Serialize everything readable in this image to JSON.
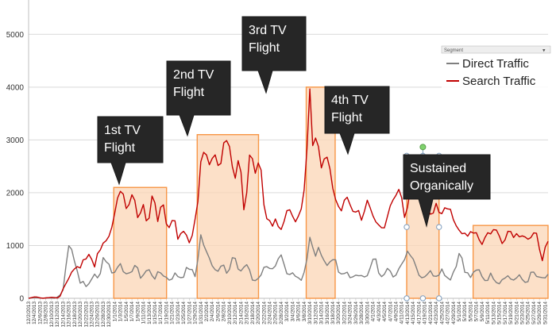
{
  "chart_data": {
    "type": "line",
    "title": "",
    "xlabel": "",
    "ylabel": "",
    "ylim": [
      0,
      5500
    ],
    "yticks": [
      0,
      1000,
      2000,
      3000,
      4000,
      5000
    ],
    "n_points": 182,
    "date_labels": [
      "12/2/2013",
      "12/4/2013",
      "12/6/2013",
      "12/8/2013",
      "12/10/2013",
      "12/12/2013",
      "12/14/2013",
      "12/16/2013",
      "12/18/2013",
      "12/20/2013",
      "12/22/2013",
      "12/24/2013",
      "12/26/2013",
      "12/28/2013",
      "12/30/2013",
      "1/1/2014",
      "1/3/2014",
      "1/5/2014",
      "1/7/2014",
      "1/9/2014",
      "1/11/2014",
      "1/13/2014",
      "1/15/2014",
      "1/17/2014",
      "1/19/2014",
      "1/21/2014",
      "1/23/2014",
      "1/25/2014",
      "1/27/2014",
      "1/29/2014",
      "1/31/2014",
      "2/2/2014",
      "2/4/2014",
      "2/6/2014",
      "2/8/2014",
      "2/10/2014",
      "2/12/2014",
      "2/14/2014",
      "2/16/2014",
      "2/18/2014",
      "2/20/2014",
      "2/22/2014",
      "2/24/2014",
      "2/26/2014",
      "2/28/2014",
      "3/2/2014",
      "3/4/2014",
      "3/6/2014",
      "3/8/2014",
      "3/10/2014",
      "3/12/2014",
      "3/14/2014",
      "3/16/2014",
      "3/18/2014",
      "3/20/2014",
      "3/22/2014",
      "3/24/2014",
      "3/26/2014",
      "3/28/2014",
      "3/30/2014",
      "4/1/2014",
      "4/3/2014",
      "4/5/2014",
      "4/7/2014",
      "4/9/2014",
      "4/11/2014",
      "4/13/2014",
      "4/15/2014",
      "4/17/2014",
      "4/19/2014",
      "4/21/2014",
      "4/23/2014",
      "4/25/2014",
      "4/27/2014",
      "4/29/2014",
      "5/1/2014",
      "5/3/2014",
      "5/5/2014",
      "5/7/2014",
      "5/9/2014",
      "5/11/2014",
      "5/13/2014",
      "5/15/2014",
      "5/17/2014",
      "5/19/2014",
      "5/21/2014",
      "5/23/2014",
      "5/25/2014",
      "5/27/2014",
      "5/29/2014",
      "5/31/2014"
    ],
    "series": [
      {
        "name": "Direct Traffic",
        "color": "#7f7f7f",
        "anchors": [
          [
            0,
            0
          ],
          [
            4,
            20
          ],
          [
            8,
            0
          ],
          [
            12,
            10
          ],
          [
            16,
            0
          ],
          [
            20,
            100
          ],
          [
            24,
            1150
          ],
          [
            27,
            700
          ],
          [
            30,
            350
          ],
          [
            34,
            200
          ],
          [
            38,
            450
          ],
          [
            41,
            350
          ],
          [
            44,
            800
          ],
          [
            46,
            700
          ],
          [
            50,
            450
          ],
          [
            54,
            700
          ],
          [
            58,
            350
          ],
          [
            62,
            650
          ],
          [
            66,
            400
          ],
          [
            70,
            550
          ],
          [
            74,
            400
          ],
          [
            78,
            500
          ],
          [
            82,
            350
          ],
          [
            86,
            450
          ],
          [
            90,
            400
          ],
          [
            94,
            600
          ],
          [
            98,
            400
          ],
          [
            101,
            1200
          ],
          [
            103,
            1000
          ],
          [
            105,
            800
          ],
          [
            108,
            650
          ],
          [
            111,
            500
          ],
          [
            114,
            750
          ],
          [
            117,
            400
          ],
          [
            120,
            800
          ],
          [
            124,
            500
          ],
          [
            128,
            650
          ],
          [
            132,
            300
          ],
          [
            136,
            450
          ],
          [
            140,
            650
          ],
          [
            144,
            500
          ],
          [
            148,
            800
          ],
          [
            152,
            400
          ],
          [
            156,
            500
          ],
          [
            160,
            350
          ],
          [
            163,
            650
          ],
          [
            165,
            1150
          ],
          [
            168,
            800
          ],
          [
            171,
            950
          ],
          [
            175,
            600
          ],
          [
            179,
            800
          ],
          [
            183,
            400
          ],
          [
            187,
            500
          ],
          [
            191,
            350
          ],
          [
            195,
            500
          ],
          [
            199,
            400
          ],
          [
            203,
            800
          ],
          [
            207,
            350
          ],
          [
            211,
            650
          ],
          [
            215,
            400
          ],
          [
            219,
            600
          ],
          [
            222,
            900
          ],
          [
            225,
            850
          ],
          [
            228,
            550
          ],
          [
            231,
            400
          ],
          [
            235,
            500
          ],
          [
            239,
            450
          ],
          [
            243,
            550
          ],
          [
            247,
            350
          ],
          [
            251,
            600
          ],
          [
            253,
            950
          ],
          [
            256,
            500
          ],
          [
            260,
            400
          ],
          [
            264,
            550
          ],
          [
            268,
            350
          ],
          [
            272,
            450
          ],
          [
            276,
            300
          ],
          [
            280,
            450
          ],
          [
            284,
            350
          ],
          [
            288,
            400
          ],
          [
            292,
            300
          ],
          [
            296,
            500
          ],
          [
            300,
            350
          ],
          [
            304,
            400
          ]
        ],
        "spikes": [
          [
            27,
            1150
          ],
          [
            112,
            1200
          ],
          [
            166,
            1150
          ],
          [
            250,
            950
          ]
        ]
      },
      {
        "name": "Search Traffic",
        "color": "#c00000",
        "anchors": [
          [
            0,
            0
          ],
          [
            4,
            30
          ],
          [
            8,
            0
          ],
          [
            14,
            20
          ],
          [
            18,
            0
          ],
          [
            22,
            300
          ],
          [
            26,
            500
          ],
          [
            30,
            550
          ],
          [
            33,
            700
          ],
          [
            36,
            800
          ],
          [
            39,
            650
          ],
          [
            42,
            900
          ],
          [
            45,
            1100
          ],
          [
            48,
            1150
          ],
          [
            50,
            1500
          ],
          [
            52,
            1900
          ],
          [
            55,
            2000
          ],
          [
            58,
            1700
          ],
          [
            61,
            2000
          ],
          [
            64,
            1500
          ],
          [
            67,
            1800
          ],
          [
            70,
            1400
          ],
          [
            73,
            2050
          ],
          [
            76,
            1500
          ],
          [
            79,
            1800
          ],
          [
            82,
            1300
          ],
          [
            85,
            1600
          ],
          [
            88,
            1100
          ],
          [
            91,
            1300
          ],
          [
            94,
            1000
          ],
          [
            97,
            1300
          ],
          [
            99,
            1700
          ],
          [
            101,
            2600
          ],
          [
            103,
            2800
          ],
          [
            106,
            2500
          ],
          [
            109,
            2850
          ],
          [
            112,
            2400
          ],
          [
            115,
            3050
          ],
          [
            118,
            2900
          ],
          [
            121,
            2300
          ],
          [
            124,
            2700
          ],
          [
            127,
            1400
          ],
          [
            130,
            2900
          ],
          [
            133,
            2400
          ],
          [
            136,
            2700
          ],
          [
            139,
            1500
          ],
          [
            142,
            1400
          ],
          [
            145,
            1500
          ],
          [
            148,
            1300
          ],
          [
            151,
            1600
          ],
          [
            154,
            1700
          ],
          [
            157,
            1400
          ],
          [
            160,
            1600
          ],
          [
            163,
            2400
          ],
          [
            165,
            4000
          ],
          [
            167,
            2800
          ],
          [
            169,
            3200
          ],
          [
            172,
            2500
          ],
          [
            175,
            2700
          ],
          [
            178,
            2200
          ],
          [
            181,
            1800
          ],
          [
            184,
            1700
          ],
          [
            187,
            1900
          ],
          [
            190,
            1600
          ],
          [
            193,
            1700
          ],
          [
            196,
            1500
          ],
          [
            199,
            1800
          ],
          [
            202,
            1600
          ],
          [
            205,
            1400
          ],
          [
            208,
            1300
          ],
          [
            211,
            1600
          ],
          [
            215,
            1900
          ],
          [
            218,
            2100
          ],
          [
            221,
            1500
          ],
          [
            224,
            2100
          ],
          [
            227,
            2600
          ],
          [
            230,
            2000
          ],
          [
            233,
            1700
          ],
          [
            236,
            1600
          ],
          [
            239,
            1750
          ],
          [
            242,
            1600
          ],
          [
            245,
            1800
          ],
          [
            248,
            1700
          ],
          [
            251,
            1300
          ],
          [
            254,
            1200
          ],
          [
            258,
            1250
          ],
          [
            262,
            1300
          ],
          [
            266,
            1050
          ],
          [
            270,
            1250
          ],
          [
            274,
            1300
          ],
          [
            278,
            1100
          ],
          [
            282,
            1300
          ],
          [
            286,
            1200
          ],
          [
            290,
            1250
          ],
          [
            294,
            1100
          ],
          [
            298,
            1200
          ],
          [
            302,
            750
          ],
          [
            304,
            1000
          ]
        ],
        "spikes": [
          [
            165,
            4000
          ]
        ]
      }
    ],
    "annotations": [
      {
        "label_lines": [
          "1st TV",
          "Flight"
        ],
        "range": [
          50,
          81
        ],
        "box_top": 2100
      },
      {
        "label_lines": [
          "2nd TV",
          "Flight"
        ],
        "range": [
          99,
          135
        ],
        "box_top": 3100
      },
      {
        "label_lines": [
          "3rd TV",
          "Flight"
        ],
        "range": [
          163,
          180
        ],
        "box_top": 4000
      },
      {
        "label_lines": [
          "4th TV",
          "Flight"
        ],
        "range": [
          222,
          241
        ],
        "box_top": 2700
      },
      {
        "label_lines": [
          "Sustained",
          "Organically"
        ],
        "range": [
          261,
          305
        ],
        "box_top": 1380
      }
    ],
    "legend": {
      "title": "Segment",
      "position": "top-right",
      "entries": [
        "Direct Traffic",
        "Search Traffic"
      ]
    }
  }
}
